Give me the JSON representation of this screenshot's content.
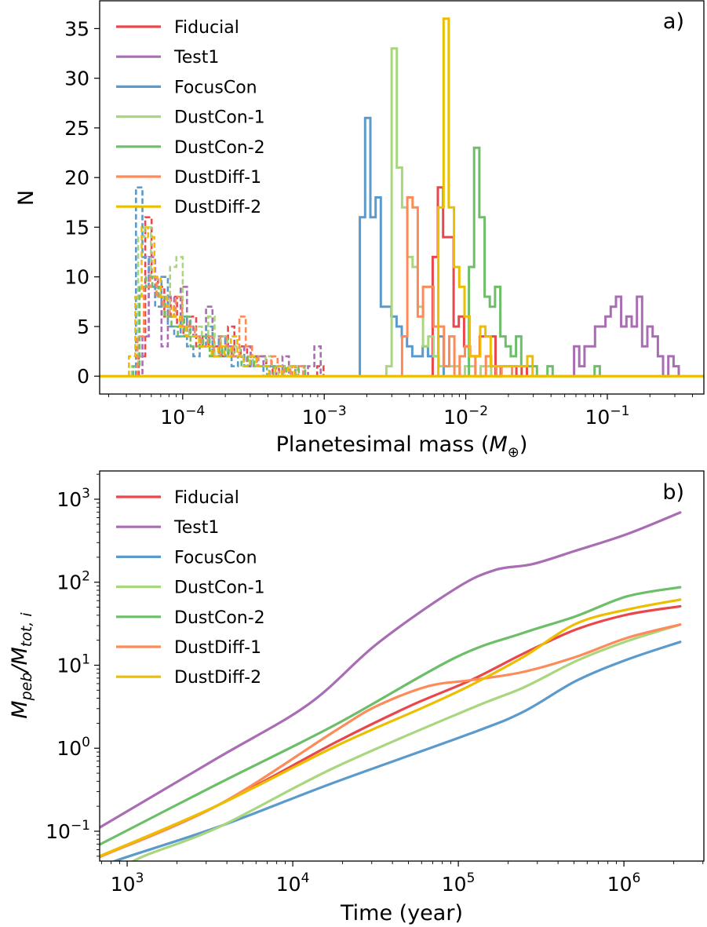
{
  "chart_data": [
    {
      "type": "histogram",
      "panel_label": "a)",
      "xlabel_parts": [
        "Planetesimal mass (",
        "M",
        "⊕",
        ")"
      ],
      "ylabel": "N",
      "xscale": "log",
      "xlim": [
        2.59e-05,
        0.481
      ],
      "ylim": [
        -1.8,
        37.8
      ],
      "yticks": [
        "0",
        "5",
        "10",
        "15",
        "20",
        "25",
        "30",
        "35"
      ],
      "ytick_values": [
        0,
        5,
        10,
        15,
        20,
        25,
        30,
        35
      ],
      "xticks": [
        {
          "value": 0.0001,
          "base": "10",
          "exp": "−4"
        },
        {
          "value": 0.001,
          "base": "10",
          "exp": "−3"
        },
        {
          "value": 0.01,
          "base": "10",
          "exp": "−2"
        },
        {
          "value": 0.1,
          "base": "10",
          "exp": "−1"
        }
      ],
      "legend_placement": "upper-left",
      "series": [
        {
          "name": "Fiducial",
          "color": "#e9474c",
          "solid": {
            "first_edge": 0.005834,
            "log_bin_width": 0.037,
            "counts": [
              12,
              19,
              14,
              14,
              5,
              6,
              3,
              2,
              2,
              4,
              4,
              4,
              0,
              1,
              1,
              1,
              0,
              1
            ]
          },
          "dashed": {
            "first_edge": 4.9e-05,
            "log_bin_width": 0.045,
            "counts": [
              2,
              16,
              10,
              9,
              6,
              8,
              5,
              4,
              6,
              3,
              4,
              3,
              3,
              2,
              5,
              2,
              3,
              1,
              2,
              2,
              1,
              0,
              1,
              1,
              0,
              1,
              0,
              0,
              1
            ]
          }
        },
        {
          "name": "Test1",
          "color": "#a96db4",
          "solid": {
            "first_edge": 0.05821,
            "log_bin_width": 0.037,
            "counts": [
              3,
              1,
              3,
              3,
              5,
              5,
              6,
              7,
              8,
              5,
              6,
              5,
              8,
              3,
              5,
              4,
              2,
              0,
              2,
              1
            ]
          },
          "dashed": {
            "first_edge": 4.68e-05,
            "log_bin_width": 0.045,
            "counts": [
              0,
              4,
              12,
              8,
              3,
              8,
              6,
              9,
              5,
              4,
              3,
              7,
              2,
              4,
              3,
              2,
              2,
              3,
              1,
              2,
              1,
              1,
              0,
              2,
              1,
              0,
              0,
              1,
              3
            ]
          }
        },
        {
          "name": "FocusCon",
          "color": "#5b9aca",
          "solid": {
            "first_edge": 0.001786,
            "log_bin_width": 0.037,
            "counts": [
              16,
              26,
              16,
              18,
              7,
              7,
              6,
              5,
              4,
              3,
              2,
              2,
              3,
              2,
              2,
              4
            ]
          },
          "dashed": {
            "first_edge": 4.68e-05,
            "log_bin_width": 0.045,
            "counts": [
              19,
              12,
              9,
              7,
              10,
              5,
              4,
              6,
              3,
              2,
              3,
              5,
              2,
              4,
              2,
              1,
              2,
              1,
              2,
              1,
              0,
              1,
              1,
              0,
              1
            ]
          }
        },
        {
          "name": "DustCon-1",
          "color": "#a9d67e",
          "solid": {
            "first_edge": 0.002748,
            "log_bin_width": 0.037,
            "counts": [
              1,
              33,
              21,
              17,
              12,
              11,
              7,
              3,
              4,
              2,
              1,
              1,
              1,
              1,
              0,
              1,
              1,
              0,
              1,
              1
            ]
          },
          "dashed": {
            "first_edge": 4.37e-05,
            "log_bin_width": 0.045,
            "counts": [
              1,
              14,
              15,
              10,
              8,
              6,
              11,
              12,
              5,
              4,
              5,
              3,
              6,
              2,
              4,
              2,
              3,
              2,
              2,
              1,
              1,
              2,
              1,
              0,
              1,
              0,
              1
            ]
          }
        },
        {
          "name": "DustCon-2",
          "color": "#6cbf68",
          "solid": {
            "first_edge": 0.01052,
            "log_bin_width": 0.037,
            "counts": [
              11,
              23,
              16,
              8,
              7,
              9,
              4,
              3,
              2,
              4,
              1,
              1,
              1,
              0,
              0,
              1,
              0,
              0,
              0,
              0,
              0,
              0,
              0,
              0,
              1
            ]
          },
          "dashed": {
            "first_edge": 4.47e-05,
            "log_bin_width": 0.045,
            "counts": [
              1,
              9,
              10,
              9,
              8,
              6,
              5,
              4,
              6,
              3,
              3,
              4,
              2,
              2,
              3,
              2,
              2,
              1,
              2,
              1,
              1,
              0,
              1,
              1,
              0,
              0,
              1
            ]
          }
        },
        {
          "name": "DustDiff-1",
          "color": "#fd8b5a",
          "solid": {
            "first_edge": 0.003548,
            "log_bin_width": 0.037,
            "counts": [
              4,
              18,
              17,
              6,
              9,
              9,
              5,
              5,
              1,
              4,
              0,
              2,
              3,
              2,
              0,
              0,
              2,
              1,
              0,
              1,
              1
            ]
          },
          "dashed": {
            "first_edge": 4.79e-05,
            "log_bin_width": 0.045,
            "counts": [
              4,
              9,
              10,
              8,
              7,
              6,
              8,
              5,
              5,
              4,
              3,
              4,
              2,
              4,
              3,
              2,
              6,
              3,
              2,
              1,
              1,
              2,
              1,
              0,
              1,
              1
            ]
          }
        },
        {
          "name": "DustDiff-2",
          "color": "#ecbe00",
          "solid": {
            "first_edge": 0.006397,
            "log_bin_width": 0.037,
            "counts": [
              17,
              36,
              17,
              11,
              9,
              6,
              2,
              2,
              5,
              4,
              1,
              1,
              1,
              1,
              1,
              1,
              1,
              2
            ]
          },
          "dashed": {
            "first_edge": 4.17e-05,
            "log_bin_width": 0.045,
            "counts": [
              2,
              8,
              15,
              14,
              10,
              8,
              7,
              6,
              5,
              4,
              4,
              3,
              3,
              2,
              3,
              2,
              4,
              2,
              1,
              2,
              1,
              1,
              0,
              1,
              0,
              1
            ]
          }
        }
      ]
    },
    {
      "type": "line",
      "panel_label": "b)",
      "xlabel": "Time (year)",
      "ylabel_parts": [
        "M",
        "peb",
        "/M",
        "tot, i"
      ],
      "xscale": "log",
      "yscale": "log",
      "xlim": [
        682,
        3040000.0
      ],
      "ylim": [
        0.0437,
        2190
      ],
      "xticks": [
        {
          "value": 1000.0,
          "base": "10",
          "exp": "3"
        },
        {
          "value": 10000.0,
          "base": "10",
          "exp": "4"
        },
        {
          "value": 100000.0,
          "base": "10",
          "exp": "5"
        },
        {
          "value": 1000000.0,
          "base": "10",
          "exp": "6"
        }
      ],
      "yticks": [
        {
          "value": 0.1,
          "base": "10",
          "exp": "−1"
        },
        {
          "value": 1,
          "base": "10",
          "exp": "0"
        },
        {
          "value": 10,
          "base": "10",
          "exp": "1"
        },
        {
          "value": 100,
          "base": "10",
          "exp": "2"
        },
        {
          "value": 1000,
          "base": "10",
          "exp": "3"
        }
      ],
      "legend_placement": "upper-left",
      "series": [
        {
          "name": "Fiducial",
          "color": "#e9474c",
          "points": [
            [
              682,
              0.049
            ],
            [
              3508,
              0.204
            ],
            [
              18030,
              1.17
            ],
            [
              51290,
              3.24
            ],
            [
              119100,
              6.6
            ],
            [
              247200,
              13.8
            ],
            [
              512900,
              26.9
            ],
            [
              1047000,
              40.7
            ],
            [
              2190000,
              51.3
            ]
          ]
        },
        {
          "name": "Test1",
          "color": "#a96db4",
          "points": [
            [
              682,
              0.111
            ],
            [
              3508,
              0.76
            ],
            [
              12450,
              3.39
            ],
            [
              32360,
              18.2
            ],
            [
              95500,
              83
            ],
            [
              166000,
              140
            ],
            [
              280000,
              165
            ],
            [
              512900,
              240
            ],
            [
              1047000,
              380
            ],
            [
              2190000,
              692
            ]
          ]
        },
        {
          "name": "FocusCon",
          "color": "#5b9aca",
          "points": [
            [
              682,
              0.034
            ],
            [
              851,
              0.044
            ],
            [
              3508,
              0.112
            ],
            [
              18030,
              0.39
            ],
            [
              119100,
              1.51
            ],
            [
              247200,
              2.75
            ],
            [
              512900,
              6.46
            ],
            [
              1047000,
              11.7
            ],
            [
              2190000,
              19.1
            ]
          ]
        },
        {
          "name": "DustCon-1",
          "color": "#a9d67e",
          "points": [
            [
              682,
              0.02
            ],
            [
              1096,
              0.044
            ],
            [
              3508,
              0.11
            ],
            [
              18030,
              0.59
            ],
            [
              119100,
              3.02
            ],
            [
              247200,
              5.37
            ],
            [
              512900,
              11.2
            ],
            [
              1047000,
              19.5
            ],
            [
              2190000,
              30.9
            ]
          ]
        },
        {
          "name": "DustCon-2",
          "color": "#6cbf68",
          "points": [
            [
              682,
              0.069
            ],
            [
              3508,
              0.37
            ],
            [
              18030,
              1.91
            ],
            [
              95500,
              12.3
            ],
            [
              247200,
              24.5
            ],
            [
              512900,
              38.9
            ],
            [
              1047000,
              67.6
            ],
            [
              2190000,
              87.1
            ]
          ]
        },
        {
          "name": "DustDiff-1",
          "color": "#fd8b5a",
          "points": [
            [
              682,
              0.049
            ],
            [
              3508,
              0.204
            ],
            [
              18030,
              1.62
            ],
            [
              32360,
              3.24
            ],
            [
              66070,
              5.6
            ],
            [
              119100,
              6.6
            ],
            [
              247200,
              8.3
            ],
            [
              512900,
              12.6
            ],
            [
              1047000,
              21.4
            ],
            [
              2190000,
              30.9
            ]
          ]
        },
        {
          "name": "DustDiff-2",
          "color": "#ecbe00",
          "points": [
            [
              682,
              0.05
            ],
            [
              3508,
              0.204
            ],
            [
              18030,
              1.05
            ],
            [
              64570,
              3.24
            ],
            [
              119100,
              5.75
            ],
            [
              247200,
              12.6
            ],
            [
              512900,
              31.6
            ],
            [
              1047000,
              46.8
            ],
            [
              2190000,
              61.7
            ]
          ]
        }
      ]
    }
  ]
}
